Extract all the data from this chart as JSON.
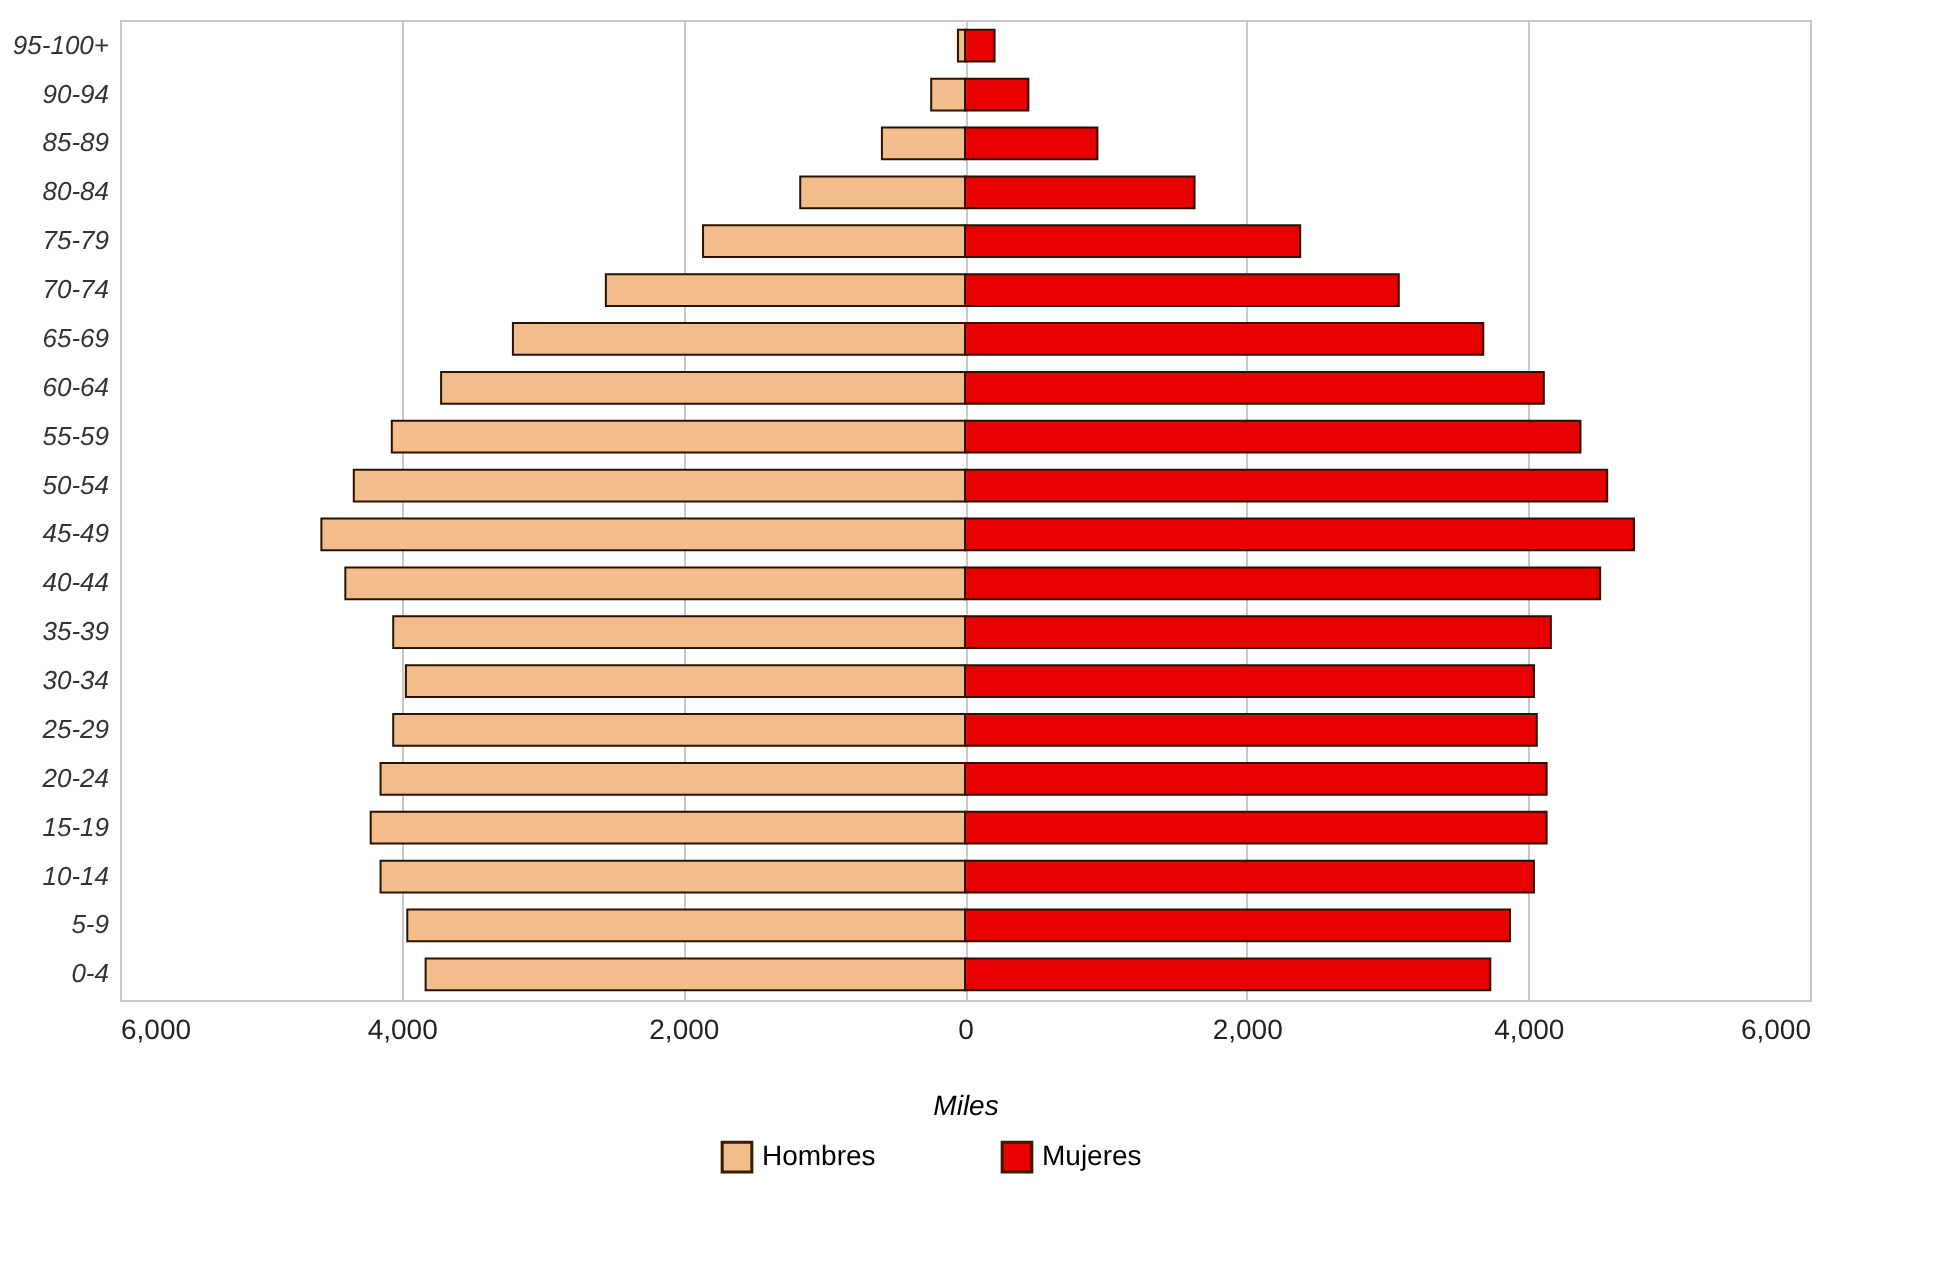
{
  "chart_data": {
    "type": "bar",
    "orientation": "horizontal",
    "xlabel": "Miles",
    "categories": [
      "95-100+",
      "90-94",
      "85-89",
      "80-84",
      "75-79",
      "70-74",
      "65-69",
      "60-64",
      "55-59",
      "50-54",
      "45-49",
      "40-44",
      "35-39",
      "30-34",
      "25-29",
      "20-24",
      "15-19",
      "10-14",
      "5-9",
      "0-4"
    ],
    "series": [
      {
        "name": "Hombres",
        "color": "#f2bd8a",
        "values": [
          -50,
          -240,
          -590,
          -1170,
          -1860,
          -2550,
          -3210,
          -3720,
          -4070,
          -4340,
          -4570,
          -4400,
          -4060,
          -3970,
          -4060,
          -4150,
          -4220,
          -4150,
          -3960,
          -3830
        ]
      },
      {
        "name": "Mujeres",
        "color": "#e60000",
        "values": [
          210,
          450,
          940,
          1630,
          2380,
          3080,
          3680,
          4110,
          4370,
          4560,
          4750,
          4510,
          4160,
          4040,
          4060,
          4130,
          4130,
          4040,
          3870,
          3730
        ]
      }
    ],
    "xlim": [
      -6000,
      6000
    ],
    "xticks": [
      {
        "value": -6000,
        "label": "6,000"
      },
      {
        "value": -4000,
        "label": "4,000"
      },
      {
        "value": -2000,
        "label": "2,000"
      },
      0,
      {
        "value": 2000,
        "label": "2,000"
      },
      {
        "value": 4000,
        "label": "4,000"
      },
      {
        "value": 6000,
        "label": "6,000"
      }
    ],
    "stacked": true,
    "grid": "x",
    "legend": "bottom"
  }
}
